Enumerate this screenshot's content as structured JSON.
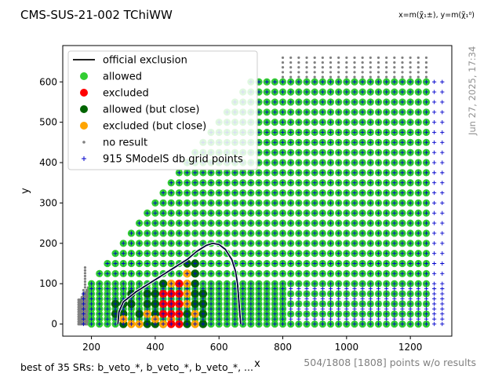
{
  "chart_data": {
    "type": "scatter",
    "title": "CMS-SUS-21-002 TChiWW",
    "axis_note": "x=m(χ̃₁±), y=m(χ̃₁⁰)",
    "xlabel": "x",
    "ylabel": "y",
    "xlim": [
      110,
      1330
    ],
    "ylim": [
      -30,
      690
    ],
    "xticks": [
      200,
      400,
      600,
      800,
      1000,
      1200
    ],
    "yticks": [
      0,
      100,
      200,
      300,
      400,
      500,
      600
    ],
    "grid": false,
    "legend_position": "top-left",
    "legend": [
      {
        "key": "official",
        "label": "official exclusion",
        "color": "#000000"
      },
      {
        "key": "allowed",
        "label": "allowed",
        "color": "#32cd32"
      },
      {
        "key": "excluded",
        "label": "excluded",
        "color": "#ff0000"
      },
      {
        "key": "close_allowed",
        "label": "allowed (but close)",
        "color": "#006400"
      },
      {
        "key": "close_excluded",
        "label": "excluded (but close)",
        "color": "#ffa500"
      },
      {
        "key": "noresult",
        "label": "no result",
        "color": "#808080"
      },
      {
        "key": "grid",
        "label": "915 SModelS db grid points",
        "color": "#0000cc"
      }
    ],
    "official_exclusion": [
      [
        283,
        0
      ],
      [
        286,
        30
      ],
      [
        300,
        55
      ],
      [
        340,
        80
      ],
      [
        400,
        110
      ],
      [
        460,
        140
      ],
      [
        500,
        160
      ],
      [
        530,
        180
      ],
      [
        560,
        195
      ],
      [
        580,
        200
      ],
      [
        600,
        197
      ],
      [
        620,
        185
      ],
      [
        640,
        160
      ],
      [
        652,
        130
      ],
      [
        658,
        100
      ],
      [
        662,
        60
      ],
      [
        666,
        20
      ],
      [
        668,
        0
      ]
    ],
    "grid_points": {
      "x_min": 175,
      "x_max": 1300,
      "x_step": 25,
      "y_min": 0,
      "y_max": 600,
      "y_step": 12.5,
      "diagonal_offset": 100
    },
    "allowed_region": {
      "x_min": 200,
      "x_max": 1250,
      "y_step": 25,
      "diagonal_offset": 100
    },
    "no_result": {
      "x_min": 800,
      "x_max": 1250,
      "y_min": 612,
      "y_max": 660,
      "low_mass_x_min": 160,
      "low_mass_x_max": 190
    },
    "excluded_points": [
      [
        425,
        50
      ],
      [
        425,
        75
      ],
      [
        450,
        25
      ],
      [
        450,
        50
      ],
      [
        450,
        75
      ],
      [
        475,
        0
      ],
      [
        475,
        25
      ],
      [
        475,
        50
      ],
      [
        475,
        75
      ],
      [
        475,
        100
      ],
      [
        450,
        0
      ],
      [
        425,
        25
      ]
    ],
    "close_allowed_points": [
      [
        275,
        25
      ],
      [
        275,
        50
      ],
      [
        300,
        0
      ],
      [
        300,
        25
      ],
      [
        300,
        50
      ],
      [
        325,
        50
      ],
      [
        325,
        75
      ],
      [
        350,
        25
      ],
      [
        375,
        50
      ],
      [
        375,
        75
      ],
      [
        400,
        25
      ],
      [
        400,
        50
      ],
      [
        400,
        75
      ],
      [
        425,
        100
      ],
      [
        400,
        0
      ],
      [
        500,
        150
      ],
      [
        525,
        150
      ],
      [
        525,
        125
      ],
      [
        525,
        100
      ],
      [
        525,
        75
      ],
      [
        500,
        0
      ],
      [
        500,
        25
      ],
      [
        525,
        50
      ],
      [
        550,
        75
      ],
      [
        550,
        50
      ],
      [
        550,
        25
      ],
      [
        550,
        0
      ],
      [
        375,
        0
      ],
      [
        425,
        0
      ]
    ],
    "close_excluded_points": [
      [
        300,
        12
      ],
      [
        325,
        0
      ],
      [
        350,
        0
      ],
      [
        375,
        25
      ],
      [
        400,
        12
      ],
      [
        425,
        0
      ],
      [
        450,
        100
      ],
      [
        500,
        50
      ],
      [
        500,
        75
      ],
      [
        500,
        100
      ],
      [
        500,
        125
      ],
      [
        525,
        25
      ],
      [
        525,
        0
      ],
      [
        450,
        12
      ]
    ],
    "footer_left": "best of 35 SRs: b_veto_*, b_veto_*, b_veto_*, ...",
    "footer_right": "504/1808 [1808] points w/o results",
    "timestamp": "Jun 27, 2025, 17:34"
  }
}
